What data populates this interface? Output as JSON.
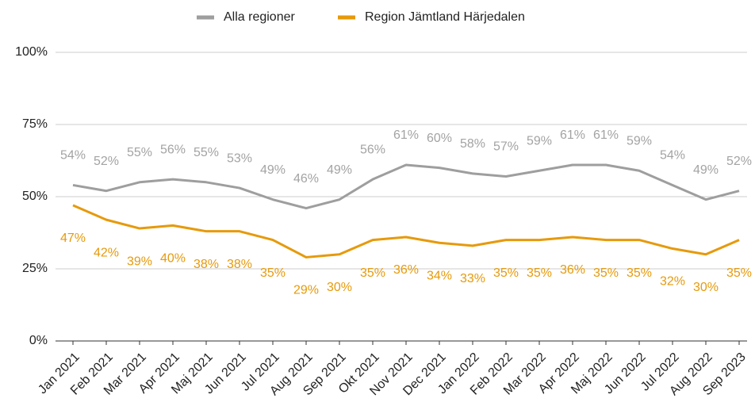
{
  "chart_data": {
    "type": "line",
    "categories": [
      "Jan 2021",
      "Feb 2021",
      "Mar 2021",
      "Apr 2021",
      "Maj 2021",
      "Jun 2021",
      "Jul 2021",
      "Aug 2021",
      "Sep 2021",
      "Okt 2021",
      "Nov 2021",
      "Dec 2021",
      "Jan 2022",
      "Feb 2022",
      "Mar 2022",
      "Apr 2022",
      "Maj 2022",
      "Jun 2022",
      "Jul 2022",
      "Aug 2022",
      "Sep 2023"
    ],
    "series": [
      {
        "name": "Alla regioner",
        "color": "#9e9e9e",
        "label_color": "#a3a3a3",
        "values": [
          54,
          52,
          55,
          56,
          55,
          53,
          49,
          46,
          49,
          56,
          61,
          60,
          58,
          57,
          59,
          61,
          61,
          59,
          54,
          49,
          52
        ],
        "value_labels": [
          "54%",
          "52%",
          "55%",
          "56%",
          "55%",
          "53%",
          "49%",
          "46%",
          "49%",
          "56%",
          "61%",
          "60%",
          "58%",
          "57%",
          "59%",
          "61%",
          "61%",
          "59%",
          "54%",
          "49%",
          "52%"
        ]
      },
      {
        "name": "Region Jämtland Härjedalen",
        "color": "#e69a0b",
        "label_color": "#e69a0b",
        "values": [
          47,
          42,
          39,
          40,
          38,
          38,
          35,
          29,
          30,
          35,
          36,
          34,
          33,
          35,
          35,
          36,
          35,
          35,
          32,
          30,
          35
        ],
        "value_labels": [
          "47%",
          "42%",
          "39%",
          "40%",
          "38%",
          "38%",
          "35%",
          "29%",
          "30%",
          "35%",
          "36%",
          "34%",
          "33%",
          "35%",
          "35%",
          "36%",
          "35%",
          "35%",
          "32%",
          "30%",
          "35%"
        ]
      }
    ],
    "ylim": [
      0,
      100
    ],
    "yticks": [
      {
        "value": 0,
        "label": "0%"
      },
      {
        "value": 25,
        "label": "25%"
      },
      {
        "value": 50,
        "label": "50%"
      },
      {
        "value": 75,
        "label": "75%"
      },
      {
        "value": 100,
        "label": "100%"
      }
    ],
    "grid": true,
    "legend": "top"
  }
}
